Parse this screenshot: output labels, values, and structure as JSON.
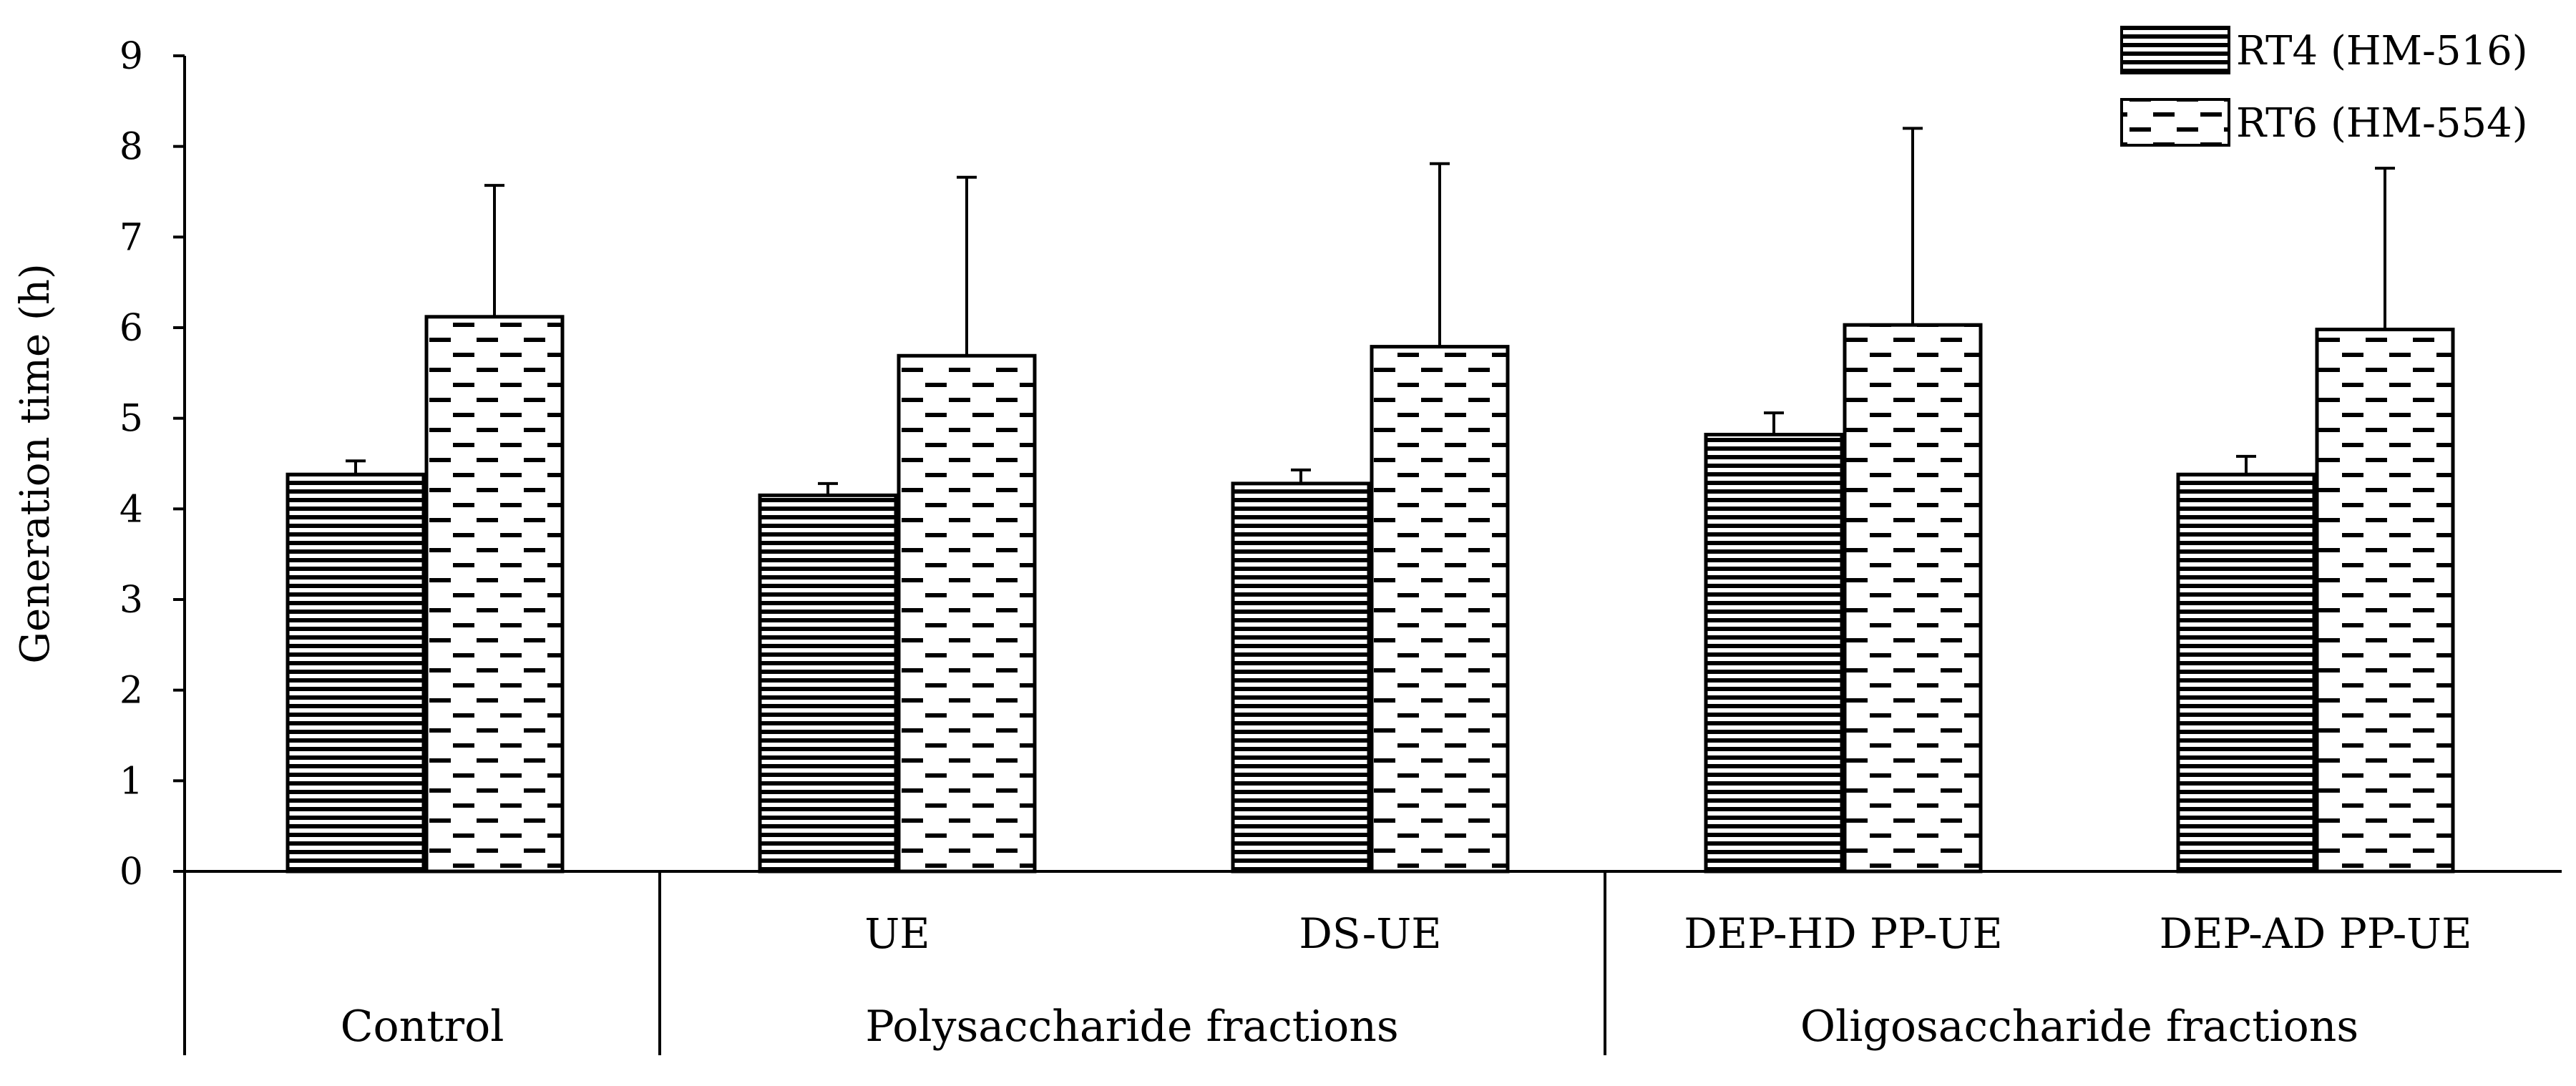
{
  "chart_data": {
    "type": "bar",
    "title": "",
    "xlabel": "",
    "ylabel": "Generation time (h)",
    "ylim": [
      0,
      9
    ],
    "yticks": [
      "0",
      "1",
      "2",
      "3",
      "4",
      "5",
      "6",
      "7",
      "8",
      "9"
    ],
    "grid": false,
    "legend_position": "top-right",
    "categories": [
      "",
      "UE",
      "DS-UE",
      "DEP-HD PP-UE",
      "DEP-AD PP-UE"
    ],
    "groups": [
      {
        "label": "Control",
        "categories": [
          ""
        ]
      },
      {
        "label": "Polysaccharide fractions",
        "categories": [
          "UE",
          "DS-UE"
        ]
      },
      {
        "label": "Oligosaccharide fractions",
        "categories": [
          "DEP-HD PP-UE",
          "DEP-AD PP-UE"
        ]
      }
    ],
    "series": [
      {
        "name": "RT4 (HM-516)",
        "pattern": "horizontal-lines",
        "values": [
          4.38,
          4.15,
          4.28,
          4.82,
          4.38
        ],
        "errors": [
          0.15,
          0.13,
          0.15,
          0.24,
          0.2
        ]
      },
      {
        "name": "RT6 (HM-554)",
        "pattern": "dashes",
        "values": [
          6.12,
          5.69,
          5.79,
          6.03,
          5.98
        ],
        "errors": [
          1.45,
          1.97,
          2.02,
          2.17,
          1.78
        ]
      }
    ]
  }
}
